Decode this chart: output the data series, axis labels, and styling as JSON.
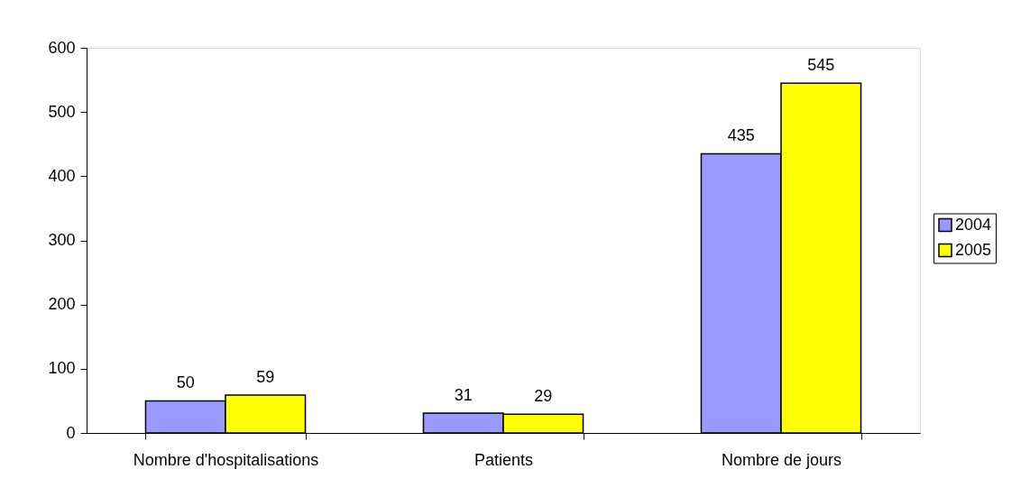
{
  "chart_data": {
    "type": "bar",
    "categories": [
      "Nombre d'hospitalisations",
      "Patients",
      "Nombre de jours"
    ],
    "series": [
      {
        "name": "2004",
        "color": "#9999ff",
        "values": [
          50,
          31,
          435
        ]
      },
      {
        "name": "2005",
        "color": "#ffff00",
        "values": [
          59,
          29,
          545
        ]
      }
    ],
    "ylim": [
      0,
      600
    ],
    "yticks": [
      0,
      100,
      200,
      300,
      400,
      500,
      600
    ],
    "grid": false,
    "legend": "right",
    "data_labels": true
  }
}
